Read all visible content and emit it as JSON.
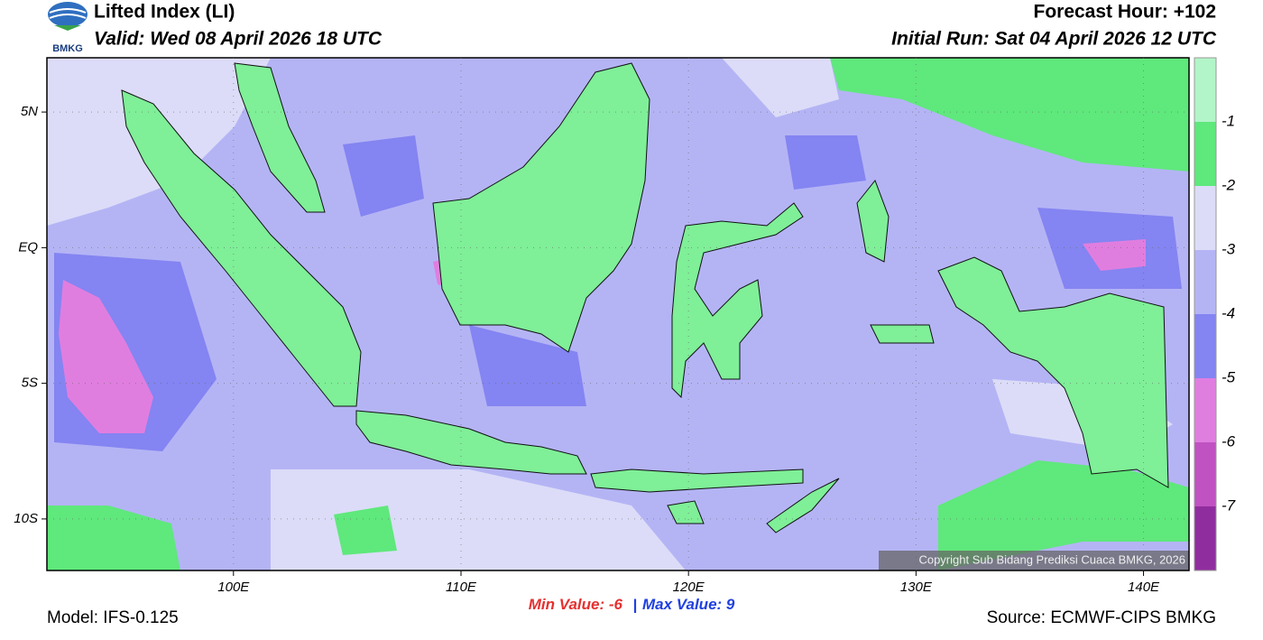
{
  "header": {
    "logo": "BMKG",
    "title": "Lifted Index (LI)",
    "valid": "Valid: Wed 08 April 2026 18 UTC",
    "forecast_hour": "Forecast Hour: +102",
    "initial_run": "Initial Run: Sat 04 April 2026 12 UTC"
  },
  "map": {
    "lon_range": [
      91.8,
      142
    ],
    "lat_range": [
      -11.9,
      7
    ],
    "lat_ticks": [
      {
        "value": 5,
        "label": "5N"
      },
      {
        "value": 0,
        "label": "EQ"
      },
      {
        "value": -5,
        "label": "5S"
      },
      {
        "value": -10,
        "label": "10S"
      }
    ],
    "lon_ticks": [
      {
        "value": 100,
        "label": "100E"
      },
      {
        "value": 110,
        "label": "110E"
      },
      {
        "value": 120,
        "label": "120E"
      },
      {
        "value": 130,
        "label": "130E"
      },
      {
        "value": 140,
        "label": "140E"
      }
    ],
    "copyright": "Copyright Sub Bidang Prediksi Cuaca BMKG, 2026"
  },
  "colorbar": {
    "levels": [
      -1,
      -2,
      -3,
      -4,
      -5,
      -6,
      -7
    ],
    "colors": [
      "#b2f5c8",
      "#5fe87c",
      "#dcdcf8",
      "#b4b4f5",
      "#8484f2",
      "#e07ee0",
      "#c052c2",
      "#902d9e"
    ]
  },
  "stats": {
    "min_label": "Min Value:",
    "min_value": -6,
    "separator": "|",
    "max_label": "Max Value:",
    "max_value": 9
  },
  "footer": {
    "model": "Model: IFS-0.125",
    "source": "Source: ECMWF-CIPS BMKG"
  }
}
